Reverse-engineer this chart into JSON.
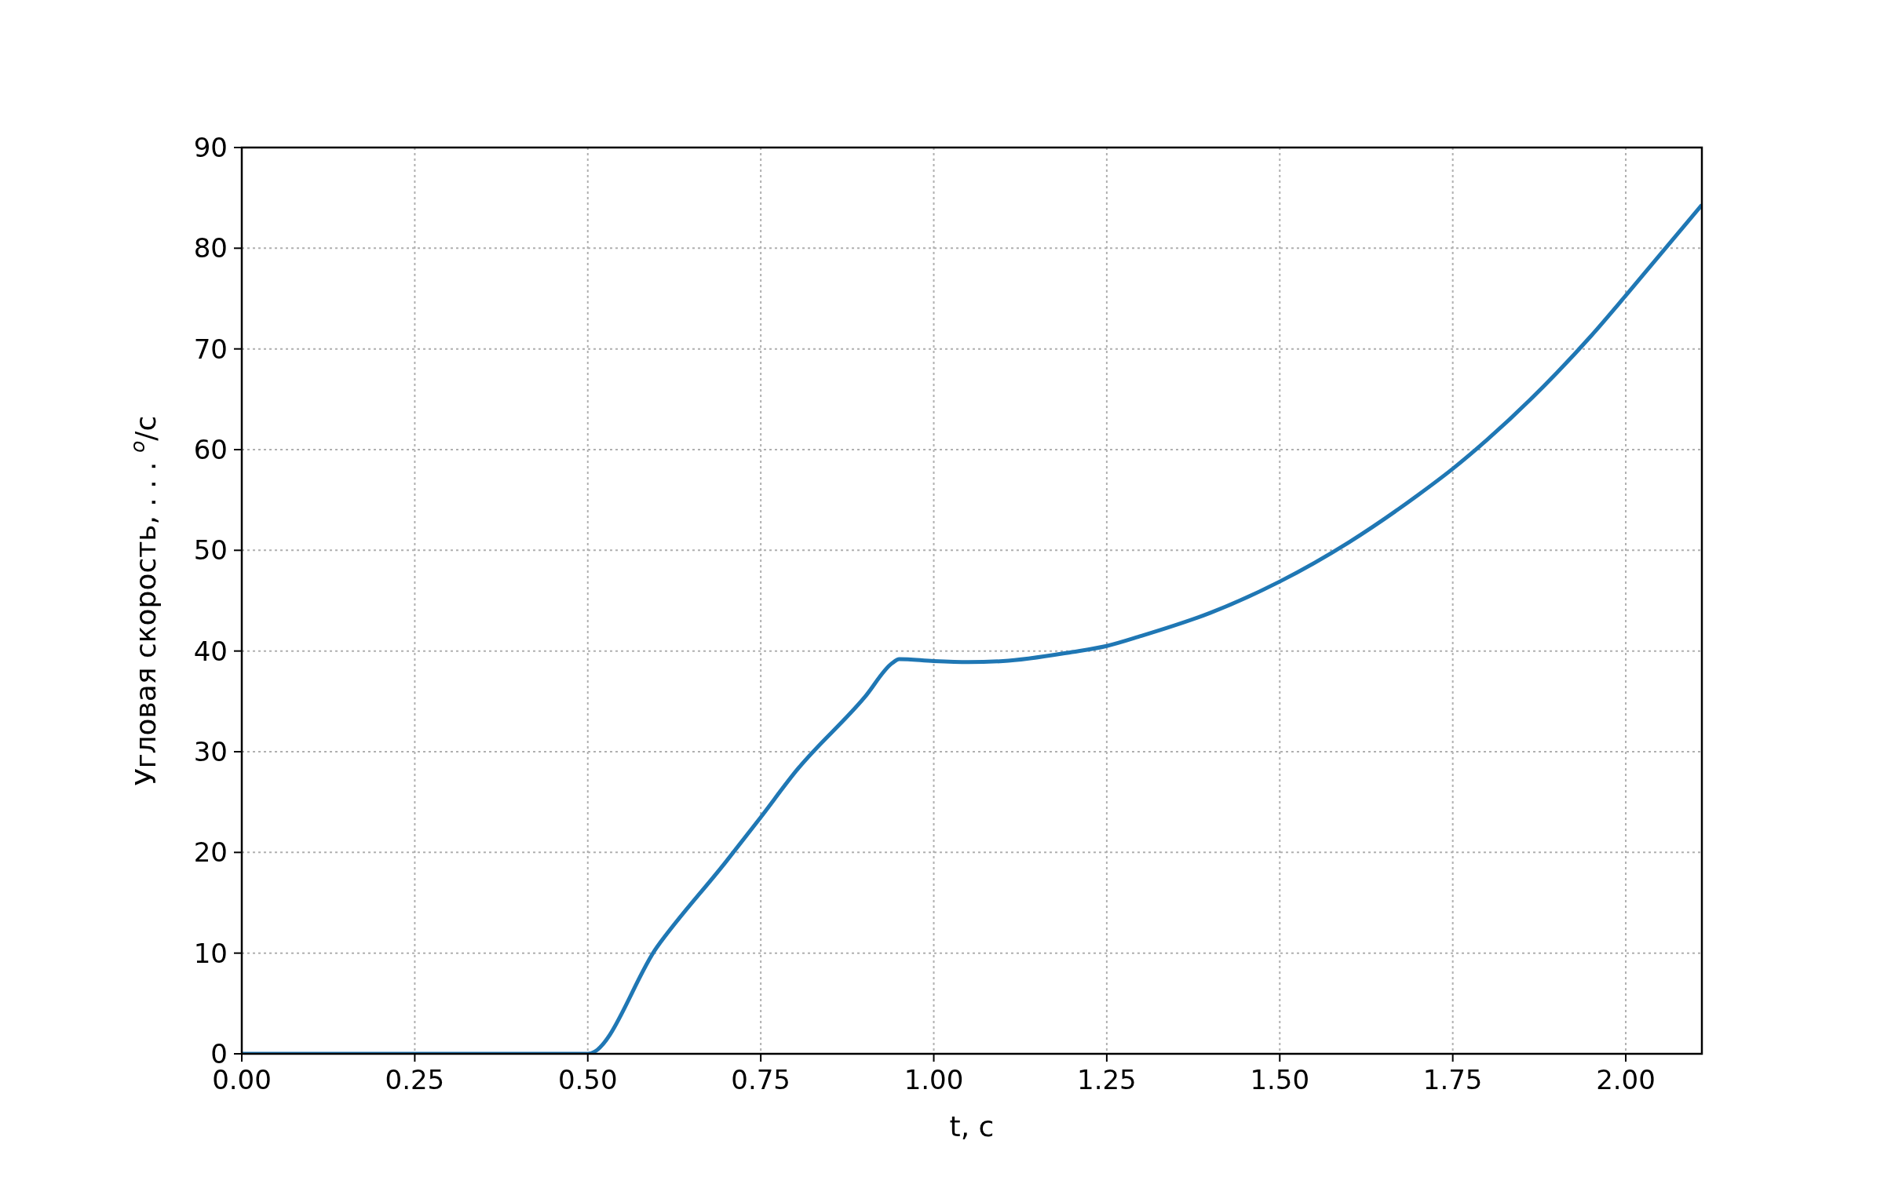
{
  "chart_data": {
    "type": "line",
    "xlabel": "t, c",
    "ylabel": "Угловая скорость, . . . $^{o}$/c",
    "xlim": [
      0,
      2.11
    ],
    "ylim": [
      0,
      90
    ],
    "xticks": [
      {
        "value": 0,
        "label": "0.00"
      },
      0.25,
      {
        "value": 0.5,
        "label": "0.50"
      },
      0.75,
      {
        "value": 1,
        "label": "1.00"
      },
      1.25,
      {
        "value": 1.5,
        "label": "1.50"
      },
      1.75,
      {
        "value": 2,
        "label": "2.00"
      }
    ],
    "yticks": [
      0,
      10,
      20,
      30,
      40,
      50,
      60,
      70,
      80,
      90
    ],
    "grid": true,
    "line_style": "solid",
    "marker": "none",
    "series": [
      {
        "color": "#1f77b4",
        "x": [
          0,
          0.5,
          0.6,
          0.7,
          0.75,
          0.8,
          0.9,
          0.94,
          0.95,
          1.0,
          1.05,
          1.1,
          1.2,
          1.25,
          1.3,
          1.4,
          1.5,
          1.6,
          1.7,
          1.75,
          1.8,
          1.9,
          1.95,
          2.0,
          2.05,
          2.11
        ],
        "values": [
          0,
          0,
          10.6,
          19.1,
          23.5,
          28.0,
          35.4,
          38.8,
          39.2,
          39.0,
          38.9,
          39.0,
          39.9,
          40.5,
          41.5,
          43.8,
          46.9,
          50.8,
          55.5,
          58.1,
          61.0,
          67.6,
          71.3,
          75.3,
          79.4,
          84.3
        ]
      }
    ]
  }
}
